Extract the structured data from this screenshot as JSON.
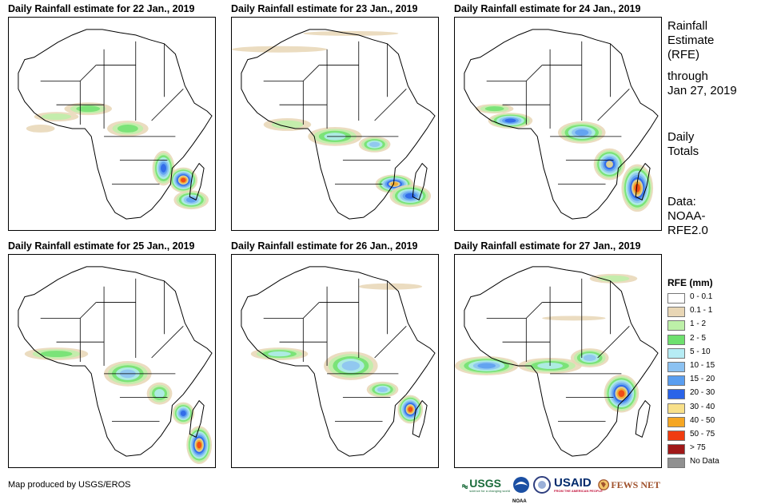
{
  "panels": [
    {
      "title": "Daily Rainfall estimate for 22 Jan., 2019"
    },
    {
      "title": "Daily Rainfall estimate for 23 Jan., 2019"
    },
    {
      "title": "Daily Rainfall estimate for 24 Jan., 2019"
    },
    {
      "title": "Daily Rainfall estimate for 25 Jan., 2019"
    },
    {
      "title": "Daily Rainfall estimate for 26 Jan., 2019"
    },
    {
      "title": "Daily Rainfall estimate for 27 Jan., 2019"
    }
  ],
  "side": {
    "title_lines": [
      "Rainfall",
      "Estimate",
      "(RFE)"
    ],
    "through_lines": [
      "through",
      "Jan 27, 2019"
    ],
    "totals_lines": [
      "Daily",
      "Totals"
    ],
    "data_lines": [
      "Data:",
      "NOAA-",
      "RFE2.0"
    ]
  },
  "legend": {
    "title": "RFE (mm)",
    "items": [
      {
        "label": "0 - 0.1",
        "color": "#ffffff"
      },
      {
        "label": "0.1 - 1",
        "color": "#e8d6b5"
      },
      {
        "label": "1 - 2",
        "color": "#bdf0a8"
      },
      {
        "label": "2 - 5",
        "color": "#6ee06e"
      },
      {
        "label": "5 - 10",
        "color": "#b6ecf4"
      },
      {
        "label": "10 - 15",
        "color": "#8cc2f2"
      },
      {
        "label": "15 - 20",
        "color": "#5a9ef0"
      },
      {
        "label": "20 - 30",
        "color": "#2a64e8"
      },
      {
        "label": "30 - 40",
        "color": "#f8e08a"
      },
      {
        "label": "40 - 50",
        "color": "#f5a623"
      },
      {
        "label": "50 - 75",
        "color": "#f03c10"
      },
      {
        "label": "> 75",
        "color": "#a01818"
      },
      {
        "label": "No Data",
        "color": "#909090"
      }
    ]
  },
  "credit": "Map produced by USGS/EROS",
  "logos": {
    "usgs": "USGS",
    "usgs_tagline": "science for a changing world",
    "noaa": "NOAA",
    "usaid": "USAID",
    "usaid_tagline": "FROM THE AMERICAN PEOPLE",
    "fewsnet": "FEWS NET"
  }
}
